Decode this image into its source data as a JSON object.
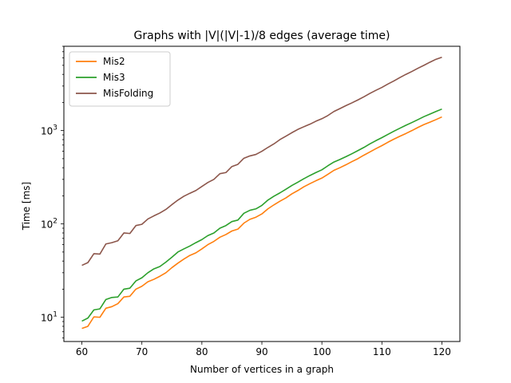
{
  "chart_data": {
    "type": "line",
    "title": "Graphs with |V|(|V|-1)/8 edges (average time)",
    "xlabel": "Number of vertices in a graph",
    "ylabel": "Time [ms]",
    "xlim": [
      57,
      123
    ],
    "ylim": [
      5.5,
      8000
    ],
    "yscale": "log",
    "grid": false,
    "legend_position": "upper left",
    "x_ticks": [
      "60",
      "70",
      "80",
      "90",
      "100",
      "110",
      "120"
    ],
    "y_ticks": [
      "10",
      "100",
      "1000"
    ],
    "x": [
      60,
      61,
      62,
      63,
      64,
      65,
      66,
      67,
      68,
      69,
      70,
      71,
      72,
      73,
      74,
      75,
      76,
      77,
      78,
      79,
      80,
      81,
      82,
      83,
      84,
      85,
      86,
      87,
      88,
      89,
      90,
      91,
      92,
      93,
      94,
      95,
      96,
      97,
      98,
      99,
      100,
      101,
      102,
      103,
      104,
      105,
      106,
      107,
      108,
      109,
      110,
      111,
      112,
      113,
      114,
      115,
      116,
      117,
      118,
      119,
      120
    ],
    "series": [
      {
        "name": "Mis2",
        "color": "#ff7f0e",
        "values": [
          7.6,
          8.0,
          10.1,
          10.0,
          12.5,
          13.0,
          14.0,
          16.5,
          16.8,
          20.0,
          21.5,
          24.0,
          25.5,
          27.5,
          30.0,
          34.0,
          38.0,
          42.0,
          46.0,
          49.0,
          54.0,
          60.0,
          65.0,
          72.0,
          77.0,
          84.0,
          88.0,
          102.0,
          112.0,
          118.0,
          128.0,
          145.0,
          160.0,
          175.0,
          190.0,
          210.0,
          228.0,
          250.0,
          270.0,
          290.0,
          310.0,
          340.0,
          375.0,
          400.0,
          430.0,
          465.0,
          500.0,
          545.0,
          590.0,
          640.0,
          690.0,
          750.0,
          810.0,
          870.0,
          930.0,
          1000.0,
          1080.0,
          1160.0,
          1230.0,
          1310.0,
          1400.0
        ]
      },
      {
        "name": "Mis3",
        "color": "#2ca02c",
        "values": [
          9.1,
          9.8,
          12.0,
          12.3,
          15.5,
          16.3,
          16.5,
          20.0,
          20.5,
          24.5,
          26.5,
          30.0,
          33.0,
          35.0,
          39.0,
          44.0,
          50.0,
          54.0,
          58.0,
          63.0,
          68.0,
          75.0,
          80.0,
          90.0,
          96.0,
          106.0,
          110.0,
          130.0,
          140.0,
          145.0,
          158.0,
          180.0,
          198.0,
          215.0,
          235.0,
          258.0,
          280.0,
          305.0,
          330.0,
          355.0,
          380.0,
          420.0,
          460.0,
          490.0,
          525.0,
          565.0,
          610.0,
          660.0,
          720.0,
          780.0,
          840.0,
          910.0,
          985.0,
          1060.0,
          1140.0,
          1220.0,
          1310.0,
          1410.0,
          1500.0,
          1600.0,
          1700.0
        ]
      },
      {
        "name": "MisFolding",
        "color": "#8c564b",
        "values": [
          36.0,
          38.5,
          48.0,
          47.5,
          61.0,
          63.0,
          66.0,
          80.0,
          79.0,
          96.0,
          99.0,
          113.0,
          122.0,
          131.0,
          143.0,
          161.0,
          180.0,
          198.0,
          213.0,
          228.0,
          252.0,
          278.0,
          300.0,
          345.0,
          355.0,
          412.0,
          435.0,
          505.0,
          535.0,
          555.0,
          600.0,
          660.0,
          720.0,
          800.0,
          870.0,
          950.0,
          1030.0,
          1100.0,
          1170.0,
          1260.0,
          1340.0,
          1450.0,
          1600.0,
          1720.0,
          1850.0,
          1980.0,
          2130.0,
          2300.0,
          2500.0,
          2700.0,
          2900.0,
          3150.0,
          3400.0,
          3700.0,
          4000.0,
          4300.0,
          4650.0,
          5000.0,
          5400.0,
          5800.0,
          6100.0
        ]
      }
    ]
  }
}
